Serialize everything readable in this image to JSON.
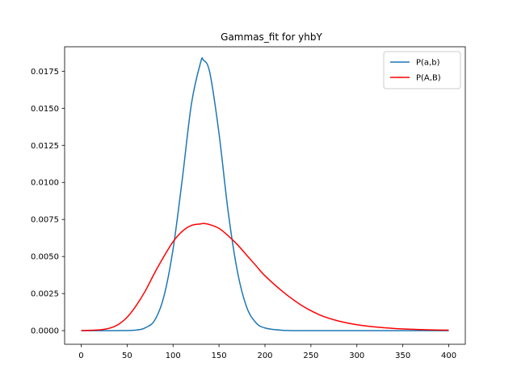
{
  "chart_data": {
    "type": "line",
    "title": "Gammas_fit for yhbY",
    "xlabel": "",
    "ylabel": "",
    "xlim": [
      -18,
      418
    ],
    "ylim": [
      -0.00092,
      0.01915
    ],
    "xticks": [
      0,
      50,
      100,
      150,
      200,
      250,
      300,
      350,
      400
    ],
    "yticks": [
      0.0,
      0.0025,
      0.005,
      0.0075,
      0.01,
      0.0125,
      0.015,
      0.0175
    ],
    "ytick_labels": [
      "0.0000",
      "0.0025",
      "0.0050",
      "0.0075",
      "0.0100",
      "0.0125",
      "0.0150",
      "0.0175"
    ],
    "legend_position": "upper right",
    "grid": false,
    "series": [
      {
        "name": "P(a,b)",
        "color": "#1f77b4",
        "x": [
          0,
          40,
          60,
          70,
          80,
          90,
          100,
          110,
          120,
          130,
          133,
          140,
          150,
          160,
          170,
          180,
          190,
          200,
          220,
          250,
          300,
          400
        ],
        "y": [
          0.0,
          0.0,
          4e-05,
          0.0002,
          0.0007,
          0.0023,
          0.0055,
          0.0102,
          0.0153,
          0.0181,
          0.01825,
          0.0174,
          0.0133,
          0.008,
          0.004,
          0.0016,
          0.00055,
          0.00018,
          2e-05,
          0.0,
          0.0,
          0.0
        ]
      },
      {
        "name": "P(A,B)",
        "color": "#ff0000",
        "x": [
          0,
          20,
          30,
          40,
          50,
          60,
          70,
          80,
          90,
          100,
          110,
          120,
          130,
          133,
          140,
          150,
          160,
          170,
          180,
          190,
          200,
          220,
          240,
          260,
          280,
          300,
          320,
          340,
          360,
          380,
          400
        ],
        "y": [
          0.0,
          5e-05,
          0.00015,
          0.0004,
          0.0009,
          0.0017,
          0.0027,
          0.0039,
          0.005,
          0.006,
          0.0067,
          0.0071,
          0.0072,
          0.00723,
          0.00715,
          0.0069,
          0.0064,
          0.0058,
          0.0051,
          0.0044,
          0.0037,
          0.0026,
          0.0017,
          0.00105,
          0.00065,
          0.0004,
          0.00025,
          0.00015,
          9e-05,
          5e-05,
          3e-05
        ]
      }
    ]
  }
}
